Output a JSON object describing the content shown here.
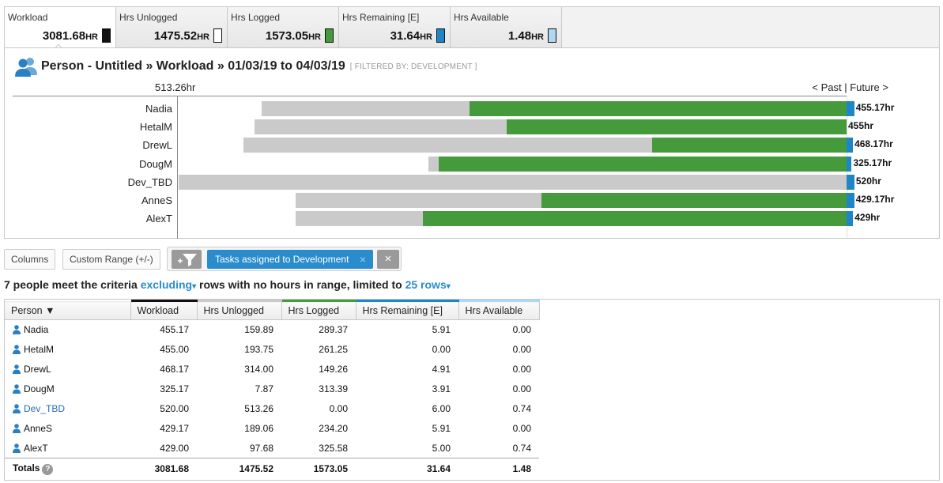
{
  "tabs": [
    {
      "label": "Workload",
      "value": "3081.68",
      "unit": "HR",
      "swatch": "#111111",
      "active": true
    },
    {
      "label": "Hrs Unlogged",
      "value": "1475.52",
      "unit": "HR",
      "swatch": "#ffffff"
    },
    {
      "label": "Hrs Logged",
      "value": "1573.05",
      "unit": "HR",
      "swatch": "#459b3b"
    },
    {
      "label": "Hrs Remaining [E]",
      "value": "31.64",
      "unit": "HR",
      "swatch": "#1d86c8"
    },
    {
      "label": "Hrs Available",
      "value": "1.48",
      "unit": "HR",
      "swatch": "#aed8f2"
    }
  ],
  "chart_panel": {
    "title": "Person - Untitled » Workload » 01/03/19 to 04/03/19",
    "filter_note": "[ FILTERED BY: DEVELOPMENT ]",
    "scale_label": "513.26hr",
    "past_label": "< Past",
    "separator": "|",
    "future_label": "Future >"
  },
  "chart_data": {
    "type": "bar",
    "orientation": "horizontal",
    "categories": [
      "Nadia",
      "HetalM",
      "DrewL",
      "DougM",
      "Dev_TBD",
      "AnneS",
      "AlexT"
    ],
    "series": [
      {
        "name": "Hrs Unlogged",
        "color": "#cacaca",
        "values": [
          159.89,
          193.75,
          314.0,
          7.87,
          513.26,
          189.06,
          97.68
        ]
      },
      {
        "name": "Hrs Logged",
        "color": "#459b3b",
        "values": [
          289.37,
          261.25,
          149.26,
          313.39,
          0.0,
          234.2,
          325.58
        ]
      },
      {
        "name": "Hrs Remaining [E]",
        "color": "#1d86c8",
        "values": [
          5.91,
          0.0,
          4.91,
          3.91,
          6.0,
          5.91,
          5.0
        ]
      }
    ],
    "data_labels": [
      "455.17hr",
      "455hr",
      "468.17hr",
      "325.17hr",
      "520hr",
      "429.17hr",
      "429hr"
    ],
    "xlim": [
      0,
      513.26
    ]
  },
  "toolbar": {
    "columns_label": "Columns",
    "custom_range_label": "Custom Range (+/-)",
    "filter_chip_label": "Tasks assigned to Development",
    "chip_remove": "×",
    "clear_filters": "×"
  },
  "summary": {
    "part1": "7 people meet the criteria",
    "excluding": "excluding",
    "part2": "rows with no hours in range, limited to",
    "limit": "25 rows",
    "caret": "▾"
  },
  "table": {
    "columns": [
      "Person ▼",
      "Workload",
      "Hrs Unlogged",
      "Hrs Logged",
      "Hrs Remaining [E]",
      "Hrs Available"
    ],
    "column_colors": [
      "transparent",
      "#111111",
      "#cacaca",
      "#459b3b",
      "#1d86c8",
      "#aed8f2"
    ],
    "rows": [
      {
        "person": "Nadia",
        "workload": "455.17",
        "unlogged": "159.89",
        "logged": "289.37",
        "remaining": "5.91",
        "available": "0.00"
      },
      {
        "person": "HetalM",
        "workload": "455.00",
        "unlogged": "193.75",
        "logged": "261.25",
        "remaining": "0.00",
        "available": "0.00"
      },
      {
        "person": "DrewL",
        "workload": "468.17",
        "unlogged": "314.00",
        "logged": "149.26",
        "remaining": "4.91",
        "available": "0.00"
      },
      {
        "person": "DougM",
        "workload": "325.17",
        "unlogged": "7.87",
        "logged": "313.39",
        "remaining": "3.91",
        "available": "0.00"
      },
      {
        "person": "Dev_TBD",
        "workload": "520.00",
        "unlogged": "513.26",
        "logged": "0.00",
        "remaining": "6.00",
        "available": "0.74",
        "is_link": true
      },
      {
        "person": "AnneS",
        "workload": "429.17",
        "unlogged": "189.06",
        "logged": "234.20",
        "remaining": "5.91",
        "available": "0.00"
      },
      {
        "person": "AlexT",
        "workload": "429.00",
        "unlogged": "97.68",
        "logged": "325.58",
        "remaining": "5.00",
        "available": "0.74"
      }
    ],
    "totals": {
      "label": "Totals",
      "help": "?",
      "workload": "3081.68",
      "unlogged": "1475.52",
      "logged": "1573.05",
      "remaining": "31.64",
      "available": "1.48"
    }
  }
}
